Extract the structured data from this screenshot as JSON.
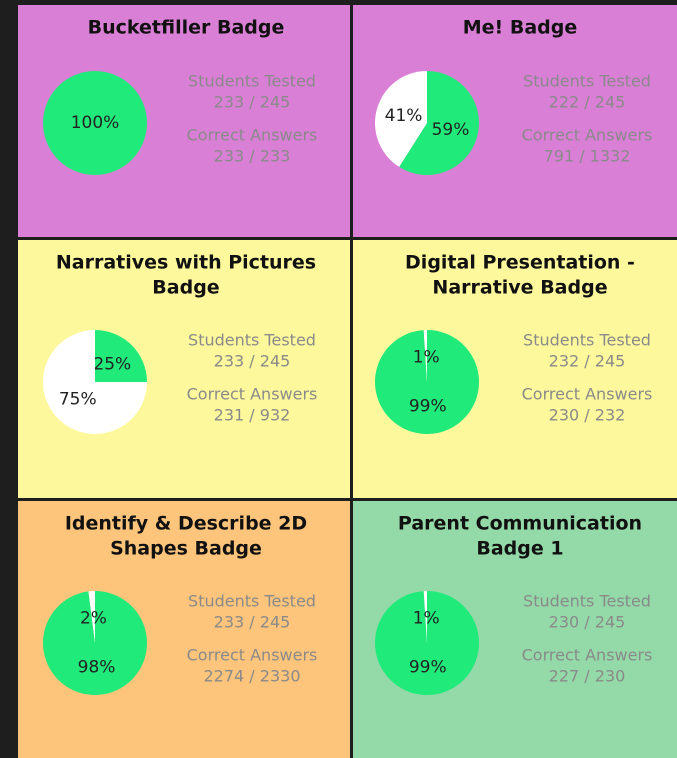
{
  "cards": [
    {
      "title": [
        "Bucketfiller Badge"
      ],
      "color": "#d97fd6",
      "stats": [
        {
          "label": "Students Tested",
          "value": "233 / 245"
        },
        {
          "label": "Correct Answers",
          "value": "233 / 233"
        }
      ],
      "pie": {
        "values": [
          100
        ],
        "value_labels": [
          "100%"
        ],
        "colors": [
          "#20ea7a"
        ]
      }
    },
    {
      "title": [
        "Me! Badge"
      ],
      "color": "#d97fd6",
      "stats": [
        {
          "label": "Students Tested",
          "value": "222 / 245"
        },
        {
          "label": "Correct Answers",
          "value": "791 / 1332"
        }
      ],
      "pie": {
        "values": [
          59,
          41
        ],
        "value_labels": [
          "59%",
          "41%"
        ],
        "colors": [
          "#20ea7a",
          "#ffffff"
        ]
      }
    },
    {
      "title": [
        "Narratives with Pictures",
        "Badge"
      ],
      "color": "#fdf89c",
      "stats": [
        {
          "label": "Students Tested",
          "value": "233 / 245"
        },
        {
          "label": "Correct Answers",
          "value": "231 / 932"
        }
      ],
      "pie": {
        "values": [
          25,
          75
        ],
        "value_labels": [
          "25%",
          "75%"
        ],
        "colors": [
          "#20ea7a",
          "#ffffff"
        ]
      }
    },
    {
      "title": [
        "Digital Presentation -",
        "Narrative Badge"
      ],
      "color": "#fdf89c",
      "stats": [
        {
          "label": "Students Tested",
          "value": "232 / 245"
        },
        {
          "label": "Correct Answers",
          "value": "230 / 232"
        }
      ],
      "pie": {
        "values": [
          99,
          1
        ],
        "value_labels": [
          "99%",
          "1%"
        ],
        "colors": [
          "#20ea7a",
          "#ffffff"
        ]
      }
    },
    {
      "title": [
        "Identify & Describe 2D",
        "Shapes Badge"
      ],
      "color": "#fdc57b",
      "stats": [
        {
          "label": "Students Tested",
          "value": "233 / 245"
        },
        {
          "label": "Correct Answers",
          "value": "2274 / 2330"
        }
      ],
      "pie": {
        "values": [
          98,
          2
        ],
        "value_labels": [
          "98%",
          "2%"
        ],
        "colors": [
          "#20ea7a",
          "#ffffff"
        ]
      }
    },
    {
      "title": [
        "Parent Communication",
        "Badge 1"
      ],
      "color": "#94d9a8",
      "stats": [
        {
          "label": "Students Tested",
          "value": "230 / 245"
        },
        {
          "label": "Correct Answers",
          "value": "227 / 230"
        }
      ],
      "pie": {
        "values": [
          99,
          1
        ],
        "value_labels": [
          "99%",
          "1%"
        ],
        "colors": [
          "#20ea7a",
          "#ffffff"
        ]
      }
    }
  ]
}
